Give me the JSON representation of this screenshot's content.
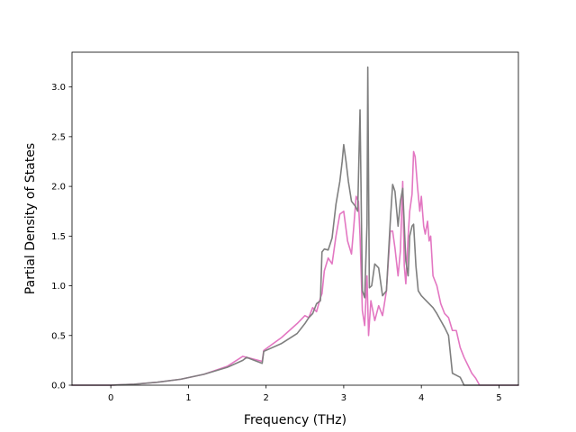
{
  "chart_data": {
    "type": "line",
    "title": "",
    "xlabel": "Frequency (THz)",
    "ylabel": "Partial Density of States",
    "xlim": [
      -0.5,
      5.25
    ],
    "ylim": [
      0.0,
      3.35
    ],
    "xticks": [
      0,
      1,
      2,
      3,
      4,
      5
    ],
    "yticks": [
      0.0,
      0.5,
      1.0,
      1.5,
      2.0,
      2.5,
      3.0
    ],
    "xtick_labels": [
      "0",
      "1",
      "2",
      "3",
      "4",
      "5"
    ],
    "ytick_labels": [
      "0.0",
      "0.5",
      "1.0",
      "1.5",
      "2.0",
      "2.5",
      "3.0"
    ],
    "grid": false,
    "series": [
      {
        "color": "#e377c2",
        "x": [
          -0.5,
          0.0,
          0.3,
          0.6,
          0.9,
          1.2,
          1.5,
          1.7,
          1.75,
          1.95,
          1.97,
          2.2,
          2.4,
          2.5,
          2.55,
          2.6,
          2.65,
          2.7,
          2.72,
          2.75,
          2.8,
          2.85,
          2.9,
          2.95,
          3.0,
          3.05,
          3.1,
          3.13,
          3.16,
          3.19,
          3.21,
          3.24,
          3.27,
          3.3,
          3.32,
          3.35,
          3.4,
          3.45,
          3.5,
          3.55,
          3.6,
          3.63,
          3.66,
          3.7,
          3.73,
          3.76,
          3.78,
          3.8,
          3.83,
          3.85,
          3.88,
          3.9,
          3.92,
          3.95,
          3.98,
          4.0,
          4.03,
          4.05,
          4.08,
          4.1,
          4.12,
          4.15,
          4.2,
          4.25,
          4.3,
          4.35,
          4.4,
          4.45,
          4.5,
          4.55,
          4.6,
          4.65,
          4.7,
          4.75,
          5.25
        ],
        "y": [
          0.0,
          0.0,
          0.01,
          0.03,
          0.06,
          0.11,
          0.19,
          0.29,
          0.28,
          0.24,
          0.35,
          0.48,
          0.62,
          0.7,
          0.68,
          0.78,
          0.74,
          0.88,
          0.92,
          1.15,
          1.28,
          1.22,
          1.5,
          1.72,
          1.75,
          1.45,
          1.32,
          1.6,
          1.9,
          1.85,
          1.5,
          0.75,
          0.6,
          1.1,
          0.5,
          0.85,
          0.65,
          0.8,
          0.7,
          0.95,
          1.55,
          1.55,
          1.38,
          1.1,
          1.35,
          2.05,
          1.2,
          1.02,
          1.5,
          1.75,
          1.92,
          2.35,
          2.3,
          2.0,
          1.75,
          1.9,
          1.6,
          1.52,
          1.65,
          1.45,
          1.5,
          1.1,
          1.0,
          0.82,
          0.72,
          0.68,
          0.55,
          0.55,
          0.38,
          0.28,
          0.2,
          0.12,
          0.07,
          0.0,
          0.0
        ]
      },
      {
        "color": "#7f7f7f",
        "x": [
          -0.5,
          0.0,
          0.3,
          0.6,
          0.9,
          1.2,
          1.5,
          1.7,
          1.75,
          1.95,
          1.97,
          2.2,
          2.4,
          2.5,
          2.55,
          2.6,
          2.65,
          2.7,
          2.72,
          2.75,
          2.8,
          2.85,
          2.9,
          2.95,
          2.98,
          3.0,
          3.03,
          3.06,
          3.1,
          3.15,
          3.18,
          3.21,
          3.24,
          3.27,
          3.3,
          3.31,
          3.33,
          3.36,
          3.4,
          3.45,
          3.5,
          3.55,
          3.6,
          3.63,
          3.66,
          3.7,
          3.73,
          3.76,
          3.8,
          3.83,
          3.85,
          3.88,
          3.9,
          3.93,
          3.96,
          4.0,
          4.05,
          4.1,
          4.15,
          4.2,
          4.25,
          4.3,
          4.35,
          4.4,
          4.45,
          4.5,
          4.55,
          4.6,
          4.65,
          5.25
        ],
        "y": [
          0.0,
          0.0,
          0.01,
          0.03,
          0.06,
          0.11,
          0.18,
          0.25,
          0.28,
          0.22,
          0.34,
          0.42,
          0.52,
          0.62,
          0.68,
          0.72,
          0.82,
          0.85,
          1.34,
          1.37,
          1.36,
          1.48,
          1.82,
          2.05,
          2.25,
          2.42,
          2.25,
          2.05,
          1.85,
          1.8,
          1.75,
          2.77,
          0.95,
          0.88,
          1.62,
          3.2,
          0.98,
          1.0,
          1.22,
          1.18,
          0.9,
          0.95,
          1.65,
          2.02,
          1.95,
          1.6,
          1.85,
          1.98,
          1.25,
          1.1,
          1.5,
          1.6,
          1.62,
          1.2,
          0.95,
          0.9,
          0.86,
          0.82,
          0.78,
          0.72,
          0.65,
          0.58,
          0.5,
          0.12,
          0.1,
          0.08,
          0.0,
          0.0,
          0.0,
          0.0
        ]
      }
    ]
  }
}
